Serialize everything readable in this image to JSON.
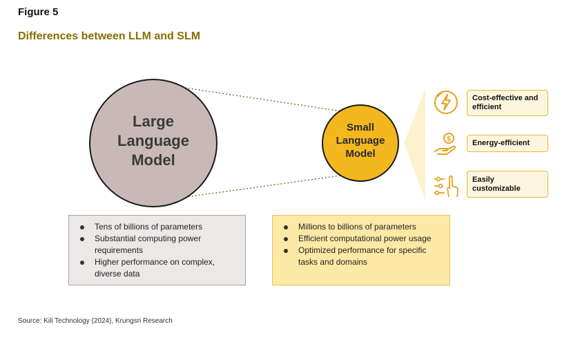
{
  "figure": {
    "label": "Figure 5",
    "title": "Differences between LLM and SLM"
  },
  "llm": {
    "name_lines": [
      "Large",
      "Language",
      "Model"
    ],
    "bullets": [
      "Tens of billions of parameters",
      "Substantial computing power requirements",
      "Higher performance on complex, diverse data"
    ]
  },
  "slm": {
    "name_lines": [
      "Small",
      "Language",
      "Model"
    ],
    "bullets": [
      "Millions to billions of parameters",
      "Efficient computational power usage",
      "Optimized performance for specific tasks and domains"
    ]
  },
  "benefits": [
    {
      "label": "Cost-effective and efficient",
      "icon": "lightning-bolt-icon"
    },
    {
      "label": "Energy-efficient",
      "icon": "coin-hand-icon"
    },
    {
      "label": "Easily customizable",
      "icon": "touch-sliders-icon"
    }
  ],
  "source": "Source: Kili Technology (2024), Krungsri Research",
  "colors": {
    "title": "#8a6d00",
    "llm_circle": "#c9b9b6",
    "slm_circle": "#f3b71f",
    "accent": "#e4b93a",
    "llm_box": "#ebe8e7",
    "slm_box": "#fde9a6",
    "benefit_box": "#fdf5de"
  }
}
